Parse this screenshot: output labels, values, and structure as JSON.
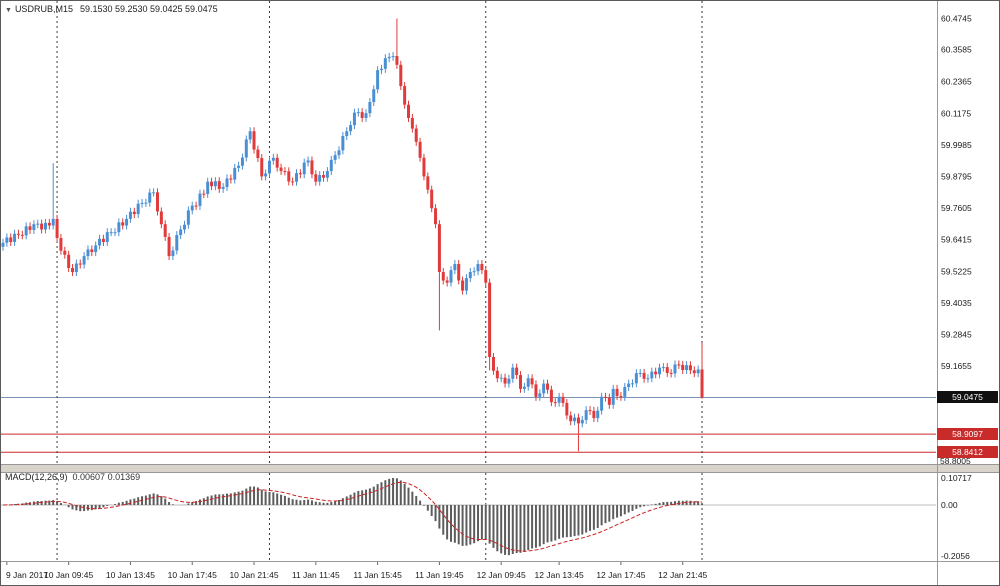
{
  "window": {
    "symbol": "USDRUB,M15",
    "ohlc": "59.1530 59.2530 59.0425 59.0475"
  },
  "indicator": {
    "label": "MACD(12,26,9)",
    "values": "0.00607 0.01369"
  },
  "price_axis": {
    "ticks": [
      "60.4745",
      "60.3585",
      "60.2365",
      "60.1175",
      "59.9985",
      "59.8795",
      "59.7605",
      "59.6415",
      "59.5225",
      "59.4035",
      "59.2845",
      "59.1655"
    ],
    "current": "59.0475",
    "levels": [
      {
        "label": "58.9097",
        "price": 58.9097
      },
      {
        "label": "58.8412",
        "price": 58.8412
      }
    ],
    "bottom_tick": "58.8005"
  },
  "macd_axis": {
    "ticks": [
      "0.10717",
      "0.00",
      "-0.2056"
    ]
  },
  "time_axis": {
    "ticks": [
      {
        "label": "9 Jan 2017",
        "pos": 1
      },
      {
        "label": "10 Jan 09:45",
        "pos": 17
      },
      {
        "label": "10 Jan 13:45",
        "pos": 33
      },
      {
        "label": "10 Jan 17:45",
        "pos": 49
      },
      {
        "label": "10 Jan 21:45",
        "pos": 65
      },
      {
        "label": "11 Jan 11:45",
        "pos": 81
      },
      {
        "label": "11 Jan 15:45",
        "pos": 97
      },
      {
        "label": "11 Jan 19:45",
        "pos": 113
      },
      {
        "label": "12 Jan 09:45",
        "pos": 129
      },
      {
        "label": "12 Jan 13:45",
        "pos": 144
      },
      {
        "label": "12 Jan 17:45",
        "pos": 160
      },
      {
        "label": "12 Jan 21:45",
        "pos": 176
      }
    ]
  },
  "colors": {
    "up": "#4a8fd4",
    "down": "#e03a3a",
    "histogram": "#5c5c5c",
    "signal": "#cc2222",
    "current_line": "#7a93b8",
    "level_line": "#cc2a2a",
    "separator": "#3a3a3a",
    "zero_line": "#bcbcbc"
  },
  "chart_data": {
    "type": "candlestick",
    "symbol": "USDRUB",
    "timeframe": "M15",
    "title": "USDRUB,M15 with MACD(12,26,9)",
    "current_price": 59.0475,
    "ohlc_current": {
      "open": 59.153,
      "high": 59.253,
      "low": 59.0425,
      "close": 59.0475
    },
    "level_prices": [
      58.9097,
      58.8412
    ],
    "price_ticks": [
      60.4745,
      60.3585,
      60.2365,
      60.1175,
      59.9985,
      59.8795,
      59.7605,
      59.6415,
      59.5225,
      59.4035,
      59.2845,
      59.1655,
      59.0475,
      58.9097,
      58.8412,
      58.8005
    ],
    "macd": {
      "params": "12,26,9",
      "main": 0.00607,
      "signal": 0.01369,
      "axis_max": 0.10717,
      "axis_min": -0.2056
    },
    "first_open": 59.615,
    "closes": [
      59.63,
      59.65,
      59.633,
      59.664,
      59.66,
      59.658,
      59.692,
      59.678,
      59.7,
      59.702,
      59.68,
      59.705,
      59.695,
      59.72,
      59.648,
      59.6,
      59.585,
      59.535,
      59.52,
      59.552,
      59.548,
      59.58,
      59.605,
      59.595,
      59.62,
      59.645,
      59.633,
      59.67,
      59.67,
      59.67,
      59.707,
      59.695,
      59.72,
      59.747,
      59.738,
      59.777,
      59.78,
      59.781,
      59.819,
      59.82,
      59.748,
      59.7,
      59.652,
      59.58,
      59.601,
      59.659,
      59.68,
      59.698,
      59.752,
      59.77,
      59.769,
      59.815,
      59.814,
      59.86,
      59.843,
      59.862,
      59.833,
      59.84,
      59.872,
      59.868,
      59.912,
      59.92,
      59.951,
      60.019,
      60.05,
      59.981,
      59.949,
      59.88,
      59.891,
      59.939,
      59.95,
      59.913,
      59.9,
      59.899,
      59.861,
      59.86,
      59.892,
      59.888,
      59.932,
      59.94,
      59.888,
      59.86,
      59.885,
      59.875,
      59.9,
      59.942,
      59.96,
      59.978,
      60.032,
      60.05,
      60.073,
      60.12,
      60.122,
      60.1,
      60.118,
      60.16,
      60.208,
      60.28,
      60.285,
      60.325,
      60.33,
      60.333,
      60.3,
      60.22,
      60.15,
      60.1,
      60.06,
      60.01,
      59.95,
      59.88,
      59.83,
      59.76,
      59.7,
      59.52,
      59.488,
      59.48,
      59.527,
      59.55,
      59.488,
      59.45,
      59.497,
      59.52,
      59.523,
      59.55,
      59.527,
      59.48,
      59.2,
      59.148,
      59.12,
      59.122,
      59.1,
      59.118,
      59.16,
      59.132,
      59.08,
      59.088,
      59.12,
      59.097,
      59.05,
      59.063,
      59.1,
      59.077,
      59.03,
      59.028,
      59.05,
      59.027,
      58.98,
      58.958,
      58.972,
      58.95,
      58.963,
      59.0,
      58.997,
      58.97,
      58.998,
      59.05,
      59.047,
      59.02,
      59.08,
      59.053,
      59.05,
      59.087,
      59.1,
      59.101,
      59.139,
      59.14,
      59.118,
      59.12,
      59.145,
      59.135,
      59.16,
      59.162,
      59.14,
      59.138,
      59.172,
      59.17,
      59.151,
      59.169,
      59.15,
      59.139,
      59.153
    ],
    "wick_overrides": {
      "13": {
        "high": 59.93
      },
      "102": {
        "high": 60.4745
      },
      "113": {
        "low": 59.3
      },
      "126": {
        "low": 59.15
      },
      "149": {
        "low": 58.845
      }
    },
    "last_candle": {
      "open": 59.153,
      "high": 59.253,
      "low": 59.0425,
      "close": 59.0475
    },
    "separators_at": [
      14,
      69,
      125,
      181
    ]
  }
}
